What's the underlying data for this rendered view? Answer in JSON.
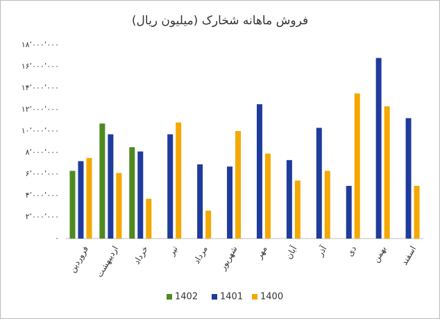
{
  "chart_data": {
    "type": "bar",
    "title": "فروش ماهانه شخارک (میلیون ریال)",
    "categories": [
      "فروردین",
      "اردیبهشت",
      "خرداد",
      "تیر",
      "مرداد",
      "شهریور",
      "مهر",
      "آبان",
      "آذر",
      "دی",
      "بهمن",
      "اسفند"
    ],
    "series": [
      {
        "name": "1402",
        "color": "#4e8a1f",
        "values": [
          6300000,
          10700000,
          8500000,
          null,
          null,
          null,
          null,
          null,
          null,
          null,
          null,
          null
        ]
      },
      {
        "name": "1401",
        "color": "#1f3b9c",
        "values": [
          7200000,
          9700000,
          8100000,
          9700000,
          6900000,
          6700000,
          12500000,
          7300000,
          10300000,
          4900000,
          16800000,
          11200000
        ]
      },
      {
        "name": "1400",
        "color": "#f5a800",
        "values": [
          7500000,
          6100000,
          3700000,
          10800000,
          2600000,
          10000000,
          7900000,
          5400000,
          6300000,
          13500000,
          12300000,
          4900000
        ]
      }
    ],
    "ylim": [
      0,
      18000000
    ],
    "yticks": [
      {
        "value": 0,
        "label": "۰"
      },
      {
        "value": 2000000,
        "label": "۲٬۰۰۰٬۰۰۰"
      },
      {
        "value": 4000000,
        "label": "۴٬۰۰۰٬۰۰۰"
      },
      {
        "value": 6000000,
        "label": "۶٬۰۰۰٬۰۰۰"
      },
      {
        "value": 8000000,
        "label": "۸٬۰۰۰٬۰۰۰"
      },
      {
        "value": 10000000,
        "label": "۱۰٬۰۰۰٬۰۰۰"
      },
      {
        "value": 12000000,
        "label": "۱۲٬۰۰۰٬۰۰۰"
      },
      {
        "value": 14000000,
        "label": "۱۴٬۰۰۰٬۰۰۰"
      },
      {
        "value": 16000000,
        "label": "۱۶٬۰۰۰٬۰۰۰"
      },
      {
        "value": 18000000,
        "label": "۱۸٬۰۰۰٬۰۰۰"
      }
    ],
    "grid": false,
    "legend": "bottom"
  }
}
